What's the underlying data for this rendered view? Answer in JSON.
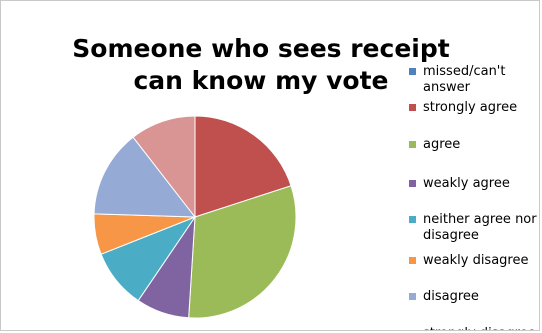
{
  "chart_data": {
    "type": "pie",
    "title": "Someone who sees receipt can know my vote",
    "legend_position": "right",
    "slices": [
      {
        "label": "missed/can't answer",
        "value": 0,
        "color": "#4F81BD"
      },
      {
        "label": "strongly agree",
        "value": 20,
        "color": "#C0504D"
      },
      {
        "label": "agree",
        "value": 31,
        "color": "#9BBB59"
      },
      {
        "label": "weakly agree",
        "value": 8.5,
        "color": "#8064A2"
      },
      {
        "label": "neither agree nor disagree",
        "value": 9.5,
        "color": "#4BACC6"
      },
      {
        "label": "weakly disagree",
        "value": 6.5,
        "color": "#F79646"
      },
      {
        "label": "disagree",
        "value": 14,
        "color": "#95ABD6"
      },
      {
        "label": "strongly disagree",
        "value": 10.5,
        "color": "#D99594"
      }
    ]
  }
}
